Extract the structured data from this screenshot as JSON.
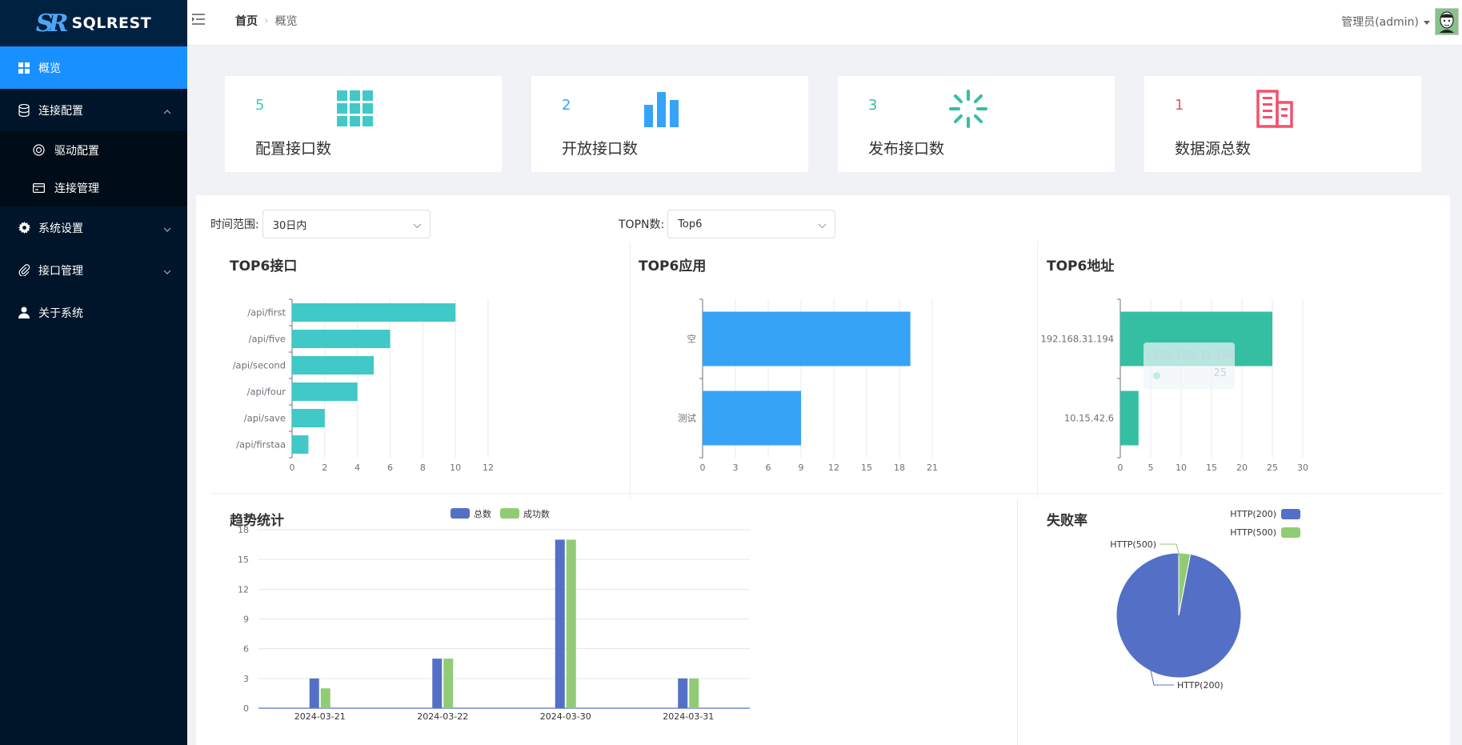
{
  "app": {
    "logo_mark": "SR",
    "name": "SQLREST"
  },
  "sidebar": {
    "items": [
      {
        "label": "概览",
        "icon": "dashboard-icon",
        "active": true
      },
      {
        "label": "连接配置",
        "icon": "database-icon",
        "expanded": true,
        "children": [
          {
            "label": "驱动配置",
            "icon": "driver-icon"
          },
          {
            "label": "连接管理",
            "icon": "connection-icon"
          }
        ]
      },
      {
        "label": "系统设置",
        "icon": "gear-icon"
      },
      {
        "label": "接口管理",
        "icon": "paperclip-icon"
      },
      {
        "label": "关于系统",
        "icon": "user-icon"
      }
    ]
  },
  "header": {
    "breadcrumb": {
      "home": "首页",
      "current": "概览"
    },
    "user": "管理员(admin)"
  },
  "cards": [
    {
      "value": "5",
      "label": "配置接口数",
      "icon": "grid-icon",
      "color": "#40c9c6"
    },
    {
      "value": "2",
      "label": "开放接口数",
      "icon": "bar-chart-icon",
      "color": "#36a3f7"
    },
    {
      "value": "3",
      "label": "发布接口数",
      "icon": "spinner-icon",
      "color": "#34bfa3"
    },
    {
      "value": "1",
      "label": "数据源总数",
      "icon": "building-icon",
      "color": "#f4516c"
    }
  ],
  "filters": {
    "time_label": "时间范围:",
    "time_value": "30日内",
    "topn_label": "TOPN数:",
    "topn_value": "Top6"
  },
  "chart_data": [
    {
      "id": "top_api",
      "type": "bar",
      "orientation": "horizontal",
      "title": "TOP6接口",
      "categories": [
        "/api/first",
        "/api/five",
        "/api/second",
        "/api/four",
        "/api/save",
        "/api/firstaa"
      ],
      "values": [
        10,
        6,
        5,
        4,
        2,
        1
      ],
      "xlim": [
        0,
        12
      ],
      "xticks": [
        0,
        2,
        4,
        6,
        8,
        10,
        12
      ],
      "color": "#40c9c6"
    },
    {
      "id": "top_app",
      "type": "bar",
      "orientation": "horizontal",
      "title": "TOP6应用",
      "categories": [
        "空",
        "测试"
      ],
      "values": [
        19,
        9
      ],
      "xlim": [
        0,
        21
      ],
      "xticks": [
        0,
        3,
        6,
        9,
        12,
        15,
        18,
        21
      ],
      "color": "#36a3f7"
    },
    {
      "id": "top_addr",
      "type": "bar",
      "orientation": "horizontal",
      "title": "TOP6地址",
      "categories": [
        "192.168.31.194",
        "10.15.42.6"
      ],
      "values": [
        25,
        3
      ],
      "xlim": [
        0,
        30
      ],
      "xticks": [
        0,
        5,
        10,
        15,
        20,
        25,
        30
      ],
      "color": "#34bfa3",
      "tooltip": {
        "label": "192.168.31.194",
        "value": "25"
      }
    },
    {
      "id": "trend",
      "type": "bar",
      "title": "趋势统计",
      "categories": [
        "2024-03-21",
        "2024-03-22",
        "2024-03-30",
        "2024-03-31"
      ],
      "series": [
        {
          "name": "总数",
          "values": [
            3,
            5,
            17,
            3
          ],
          "color": "#5470c6"
        },
        {
          "name": "成功数",
          "values": [
            2,
            5,
            17,
            3
          ],
          "color": "#91cc75"
        }
      ],
      "ylim": [
        0,
        18
      ],
      "yticks": [
        0,
        3,
        6,
        9,
        12,
        15,
        18
      ]
    },
    {
      "id": "fail_rate",
      "type": "pie",
      "title": "失败率",
      "slices": [
        {
          "label": "HTTP(200)",
          "value": 97,
          "color": "#5470c6"
        },
        {
          "label": "HTTP(500)",
          "value": 3,
          "color": "#91cc75"
        }
      ],
      "legend": "top-right"
    }
  ]
}
